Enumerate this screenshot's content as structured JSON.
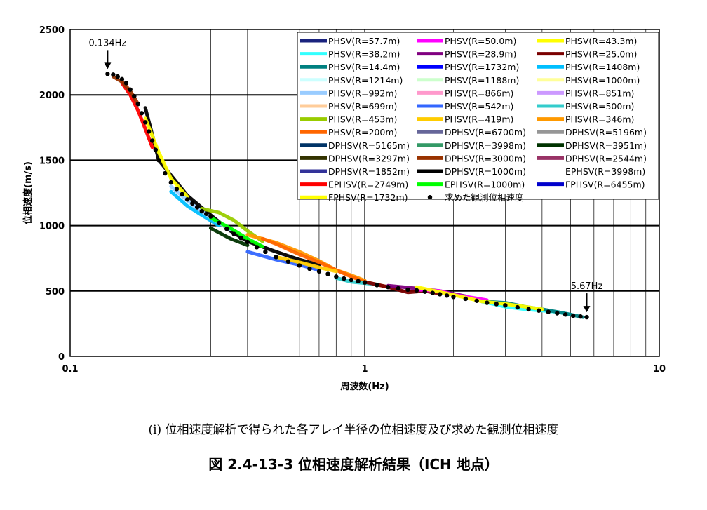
{
  "chart_data": {
    "type": "line",
    "xscale": "log",
    "xlim": [
      0.1,
      10
    ],
    "ylim": [
      0,
      2500
    ],
    "xlabel": "周波数(Hz)",
    "ylabel": "位相速度(m/s)",
    "xticks": [
      {
        "v": 0.1,
        "label": "0.1"
      },
      {
        "v": 1,
        "label": "1"
      },
      {
        "v": 10,
        "label": "10"
      }
    ],
    "yticks": [
      0,
      500,
      1000,
      1500,
      2000,
      2500
    ],
    "grid": true,
    "legend_position": "top-right",
    "annotations": [
      {
        "text": "0.134Hz",
        "x": 0.134,
        "y": 2160
      },
      {
        "text": "5.67Hz",
        "x": 5.67,
        "y": 300
      }
    ],
    "legend": [
      {
        "label": "PHSV(R=57.7m)",
        "color": "#1a237e",
        "marker": false
      },
      {
        "label": "PHSV(R=50.0m)",
        "color": "#ff00ff",
        "marker": false
      },
      {
        "label": "PHSV(R=43.3m)",
        "color": "#ffff00",
        "marker": false
      },
      {
        "label": "PHSV(R=38.2m)",
        "color": "#33ffff",
        "marker": false
      },
      {
        "label": "PHSV(R=28.9m)",
        "color": "#800080",
        "marker": false
      },
      {
        "label": "PHSV(R=25.0m)",
        "color": "#7a0000",
        "marker": false
      },
      {
        "label": "PHSV(R=14.4m)",
        "color": "#008080",
        "marker": false
      },
      {
        "label": "PHSV(R=1732m)",
        "color": "#0000ff",
        "marker": false
      },
      {
        "label": "PHSV(R=1408m)",
        "color": "#00bfff",
        "marker": false
      },
      {
        "label": "PHSV(R=1214m)",
        "color": "#ccffff",
        "marker": false
      },
      {
        "label": "PHSV(R=1188m)",
        "color": "#ccffcc",
        "marker": false
      },
      {
        "label": "PHSV(R=1000m)",
        "color": "#ffff99",
        "marker": false
      },
      {
        "label": "PHSV(R=992m)",
        "color": "#99ccff",
        "marker": false
      },
      {
        "label": "PHSV(R=866m)",
        "color": "#ff99cc",
        "marker": false
      },
      {
        "label": "PHSV(R=851m)",
        "color": "#cc99ff",
        "marker": false
      },
      {
        "label": "PHSV(R=699m)",
        "color": "#ffcc99",
        "marker": false
      },
      {
        "label": "PHSV(R=542m)",
        "color": "#3366ff",
        "marker": false
      },
      {
        "label": "PHSV(R=500m)",
        "color": "#33cccc",
        "marker": false
      },
      {
        "label": "PHSV(R=453m)",
        "color": "#99cc00",
        "marker": false
      },
      {
        "label": "PHSV(R=419m)",
        "color": "#ffcc00",
        "marker": false
      },
      {
        "label": "PHSV(R=346m)",
        "color": "#ff9900",
        "marker": false
      },
      {
        "label": "PHSV(R=200m)",
        "color": "#ff6600",
        "marker": false
      },
      {
        "label": "DPHSV(R=6700m)",
        "color": "#666699",
        "marker": false
      },
      {
        "label": "DPHSV(R=5196m)",
        "color": "#969696",
        "marker": false
      },
      {
        "label": "DPHSV(R=5165m)",
        "color": "#003366",
        "marker": false
      },
      {
        "label": "DPHSV(R=3998m)",
        "color": "#339966",
        "marker": false
      },
      {
        "label": "DPHSV(R=3951m)",
        "color": "#003300",
        "marker": false
      },
      {
        "label": "DPHSV(R=3297m)",
        "color": "#333300",
        "marker": false
      },
      {
        "label": "DPHSV(R=3000m)",
        "color": "#993300",
        "marker": false
      },
      {
        "label": "DPHSV(R=2544m)",
        "color": "#993366",
        "marker": false
      },
      {
        "label": "DPHSV(R=1852m)",
        "color": "#333399",
        "marker": false
      },
      {
        "label": "DPHSV(R=1000m)",
        "color": "#000000",
        "marker": false
      },
      {
        "label": "EPHSV(R=3998m)",
        "color": "#ffffff",
        "marker": false
      },
      {
        "label": "EPHSV(R=2749m)",
        "color": "#ff0000",
        "marker": false
      },
      {
        "label": "EPHSV(R=1000m)",
        "color": "#00ff00",
        "marker": false
      },
      {
        "label": "FPHSV(R=6455m)",
        "color": "#0000cc",
        "marker": false
      },
      {
        "label": "FPHSV(R=1732m)",
        "color": "#ffff00",
        "marker": false
      },
      {
        "label": "求めた観測位相速度",
        "color": "#000000",
        "marker": true
      }
    ],
    "series": [
      {
        "name": "DPHSV(R=1000m)",
        "color": "#000000",
        "x": [
          0.18,
          0.2,
          0.25,
          0.3,
          0.35,
          0.4,
          0.5,
          0.6,
          0.7
        ],
        "y": [
          1900,
          1500,
          1230,
          1080,
          960,
          880,
          800,
          740,
          700
        ]
      },
      {
        "name": "EPHSV(R=2749m)",
        "color": "#ff0000",
        "x": [
          0.15,
          0.16,
          0.17,
          0.18,
          0.19
        ],
        "y": [
          2090,
          2000,
          1880,
          1740,
          1600
        ]
      },
      {
        "name": "DPHSV(R=3000m)",
        "color": "#993300",
        "x": [
          0.14,
          0.15,
          0.16,
          0.17
        ],
        "y": [
          2140,
          2100,
          2030,
          1930
        ]
      },
      {
        "name": "FPHSV(R=1732m)",
        "color": "#ffff00",
        "x": [
          0.18,
          0.2,
          0.22,
          0.25
        ],
        "y": [
          1820,
          1560,
          1360,
          1220
        ]
      },
      {
        "name": "PHSV(R=1408m)",
        "color": "#00bfff",
        "x": [
          0.22,
          0.25,
          0.28,
          0.32
        ],
        "y": [
          1260,
          1150,
          1080,
          1000
        ]
      },
      {
        "name": "PHSV(R=992m)",
        "color": "#99ccff",
        "x": [
          0.22,
          0.26,
          0.3,
          0.35
        ],
        "y": [
          1300,
          1160,
          1060,
          970
        ]
      },
      {
        "name": "PHSV(R=453m)",
        "color": "#99cc00",
        "x": [
          0.28,
          0.32,
          0.36,
          0.4,
          0.45
        ],
        "y": [
          1130,
          1100,
          1040,
          960,
          880
        ]
      },
      {
        "name": "EPHSV(R=1000m)",
        "color": "#00ff00",
        "x": [
          0.3,
          0.35,
          0.4,
          0.45
        ],
        "y": [
          1060,
          980,
          900,
          840
        ]
      },
      {
        "name": "DPHSV(R=3951m)",
        "color": "#003300",
        "x": [
          0.3,
          0.35,
          0.4
        ],
        "y": [
          980,
          900,
          850
        ]
      },
      {
        "name": "PHSV(R=346m)",
        "color": "#ff9900",
        "x": [
          0.4,
          0.5,
          0.6,
          0.7,
          0.8,
          0.9,
          1.0
        ],
        "y": [
          930,
          870,
          800,
          730,
          660,
          620,
          580
        ]
      },
      {
        "name": "PHSV(R=200m)",
        "color": "#ff6600",
        "x": [
          0.45,
          0.5,
          0.6,
          0.7,
          0.8,
          0.9,
          1.0,
          1.2
        ],
        "y": [
          900,
          860,
          780,
          720,
          660,
          610,
          570,
          530
        ]
      },
      {
        "name": "PHSV(R=542m)",
        "color": "#3366ff",
        "x": [
          0.4,
          0.5,
          0.6,
          0.7
        ],
        "y": [
          800,
          740,
          700,
          660
        ]
      },
      {
        "name": "PHSV(R=419m)",
        "color": "#ffcc00",
        "x": [
          0.5,
          0.6,
          0.7,
          0.8
        ],
        "y": [
          760,
          720,
          680,
          650
        ]
      },
      {
        "name": "PHSV(R=500m)",
        "color": "#33cccc",
        "x": [
          0.8,
          0.9,
          1.0,
          1.1
        ],
        "y": [
          600,
          570,
          560,
          550
        ]
      },
      {
        "name": "PHSV(R=38.2m)",
        "color": "#33ffff",
        "x": [
          2.5,
          3.0,
          3.5,
          4.0,
          4.5,
          5.0
        ],
        "y": [
          420,
          380,
          360,
          350,
          340,
          320
        ]
      },
      {
        "name": "PHSV(R=25.0m)",
        "color": "#7a0000",
        "x": [
          1.0,
          1.2,
          1.4,
          1.6,
          1.8
        ],
        "y": [
          570,
          530,
          490,
          500,
          480
        ]
      },
      {
        "name": "PHSV(R=28.9m)",
        "color": "#800080",
        "x": [
          1.2,
          1.5,
          1.8,
          2.2
        ],
        "y": [
          540,
          520,
          500,
          460
        ]
      },
      {
        "name": "PHSV(R=50.0m)",
        "color": "#ff00ff",
        "x": [
          1.5,
          1.8,
          2.0,
          2.3,
          2.6
        ],
        "y": [
          510,
          500,
          470,
          450,
          430
        ]
      },
      {
        "name": "PHSV(R=14.4m)",
        "color": "#008080",
        "x": [
          2.5,
          3.0,
          3.5,
          4.0,
          4.5,
          5.0,
          5.5
        ],
        "y": [
          420,
          410,
          380,
          360,
          340,
          320,
          300
        ]
      },
      {
        "name": "PHSV(R=43.3m)",
        "color": "#ffff00",
        "x": [
          1.5,
          2.0,
          2.5,
          3.0,
          3.5,
          4.0
        ],
        "y": [
          530,
          470,
          420,
          400,
          380,
          360
        ]
      }
    ],
    "observed": {
      "name": "求めた観測位相速度",
      "x": [
        0.134,
        0.14,
        0.145,
        0.15,
        0.155,
        0.16,
        0.165,
        0.17,
        0.175,
        0.18,
        0.185,
        0.19,
        0.195,
        0.2,
        0.21,
        0.22,
        0.23,
        0.24,
        0.25,
        0.26,
        0.27,
        0.28,
        0.29,
        0.3,
        0.32,
        0.34,
        0.36,
        0.38,
        0.4,
        0.43,
        0.46,
        0.5,
        0.55,
        0.6,
        0.65,
        0.7,
        0.75,
        0.8,
        0.85,
        0.9,
        0.95,
        1.0,
        1.1,
        1.2,
        1.3,
        1.4,
        1.5,
        1.6,
        1.7,
        1.8,
        1.9,
        2.0,
        2.2,
        2.4,
        2.6,
        2.8,
        3.0,
        3.3,
        3.6,
        3.9,
        4.2,
        4.5,
        4.8,
        5.1,
        5.4,
        5.67
      ],
      "y": [
        2160,
        2155,
        2140,
        2120,
        2090,
        2040,
        1990,
        1930,
        1860,
        1790,
        1720,
        1650,
        1580,
        1500,
        1400,
        1330,
        1280,
        1240,
        1200,
        1170,
        1140,
        1110,
        1090,
        1070,
        1020,
        975,
        935,
        905,
        875,
        835,
        800,
        760,
        725,
        695,
        670,
        650,
        630,
        610,
        595,
        585,
        575,
        565,
        545,
        530,
        520,
        510,
        505,
        495,
        485,
        475,
        465,
        455,
        440,
        425,
        410,
        400,
        390,
        375,
        360,
        350,
        340,
        330,
        320,
        310,
        305,
        300
      ]
    }
  },
  "caption": {
    "line1": "(i)  位相速度解析で得られた各アレイ半径の位相速度及び求めた観測位相速度",
    "line2": "図 2.4-13-3  位相速度解析結果（ICH 地点）"
  }
}
